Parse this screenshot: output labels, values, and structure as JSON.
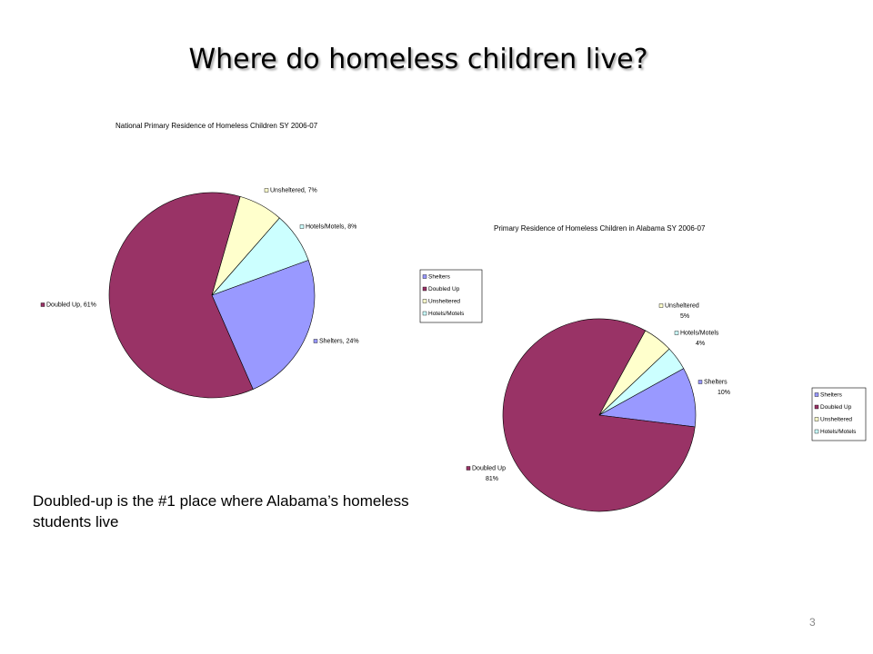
{
  "title": "Where do homeless children live?",
  "caption": "Doubled-up is the #1 place where Alabama’s homeless students live",
  "page_number": "3",
  "chart_data": [
    {
      "type": "pie",
      "title": "National Primary Residence of Homeless Children SY 2006-07",
      "categories": [
        "Shelters",
        "Doubled Up",
        "Unsheltered",
        "Hotels/Motels"
      ],
      "values": [
        24,
        61,
        7,
        8
      ],
      "value_labels": [
        "Shelters, 24%",
        "Doubled Up, 61%",
        "Unsheltered, 7%",
        "Hotels/Motels, 8%"
      ],
      "colors": [
        "#9999ff",
        "#993366",
        "#ffffcc",
        "#ccffff"
      ],
      "legend": "left"
    },
    {
      "type": "pie",
      "title": "Primary Residence of Homeless Children in Alabama SY 2006-07",
      "categories": [
        "Shelters",
        "Doubled Up",
        "Unsheltered",
        "Hotels/Motels"
      ],
      "values": [
        10,
        81,
        5,
        4
      ],
      "value_labels": [
        "10%",
        "81%",
        "5%",
        "4%"
      ],
      "colors": [
        "#9999ff",
        "#993366",
        "#ffffcc",
        "#ccffff"
      ],
      "legend": "right"
    }
  ]
}
